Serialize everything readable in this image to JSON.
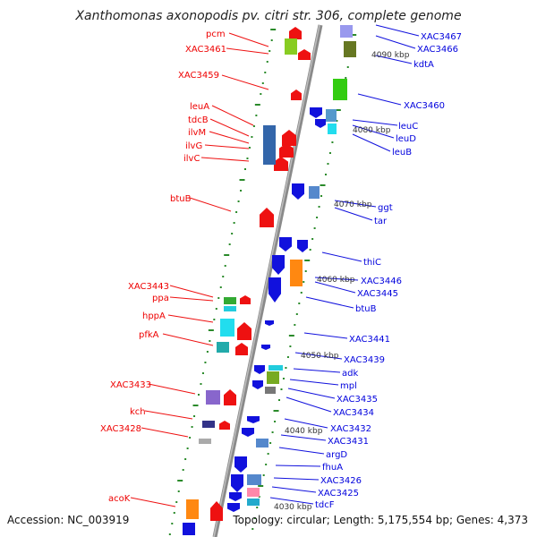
{
  "title": "Xanthomonas axonopodis pv. citri str. 306, complete genome",
  "footer": {
    "accession": "Accession: NC_003919",
    "topology": "Topology: circular; Length: 5,175,554 bp; Genes: 4,373"
  },
  "scale_marks": [
    "4090 kbp",
    "4080 kbp",
    "4070 kbp",
    "4060 kbp",
    "4050 kbp",
    "4040 kbp",
    "4030 kbp"
  ],
  "left_labels": [
    "pcm",
    "XAC3461",
    "XAC3459",
    "leuA",
    "tdcB",
    "ilvM",
    "ilvG",
    "ilvC",
    "btuB",
    "XAC3443",
    "ppa",
    "hppA",
    "pfkA",
    "XAC3433",
    "kch",
    "XAC3428",
    "acoK"
  ],
  "right_labels": [
    "XAC3467",
    "XAC3466",
    "kdtA",
    "XAC3460",
    "leuC",
    "leuD",
    "leuB",
    "ggt",
    "tar",
    "thiC",
    "XAC3446",
    "XAC3445",
    "btuB",
    "XAC3441",
    "XAC3439",
    "adk",
    "mpl",
    "XAC3435",
    "XAC3434",
    "XAC3432",
    "XAC3431",
    "argD",
    "fhuA",
    "XAC3426",
    "XAC3425",
    "tdcF"
  ],
  "colors": {
    "left_strand": "#ee0000",
    "right_strand": "#0000dd",
    "backbone": "#888888",
    "ticks": "#2a8a2a"
  }
}
